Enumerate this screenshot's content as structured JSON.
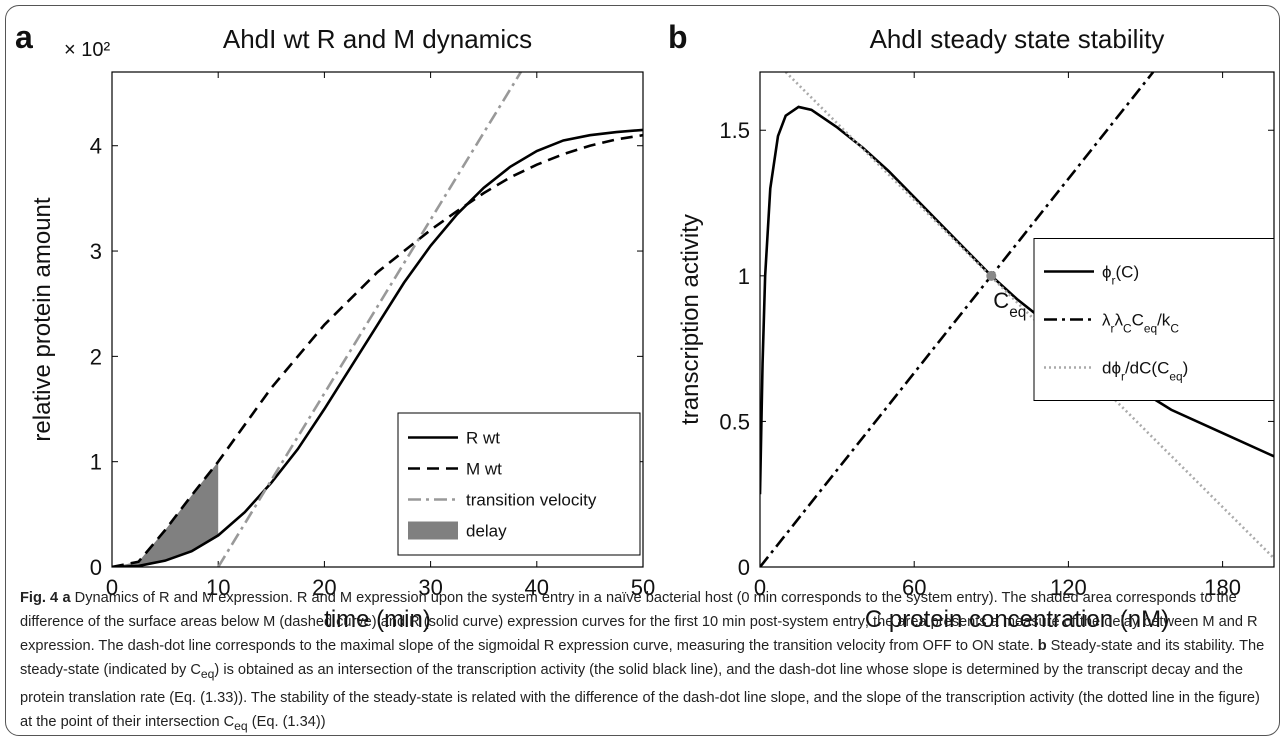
{
  "chart_data": [
    {
      "type": "line",
      "panel_label": "a",
      "title": "AhdI wt R and M dynamics",
      "x_label": "time (min)",
      "y_label": "relative protein amount",
      "y_multiplier": "× 10²",
      "xlim": [
        0,
        50
      ],
      "xticks": [
        0,
        10,
        20,
        30,
        40,
        50
      ],
      "ylim": [
        0,
        4.7
      ],
      "yticks": [
        0,
        1,
        2,
        3,
        4
      ],
      "legend": "lower right",
      "series": [
        {
          "name": "R wt",
          "color": "#000000",
          "dash": "solid",
          "x": [
            0,
            2.5,
            5,
            7.5,
            10,
            12.5,
            15,
            17.5,
            20,
            22.5,
            25,
            27.5,
            30,
            32.5,
            35,
            37.5,
            40,
            42.5,
            45,
            47.5,
            50
          ],
          "values": [
            0,
            0.01,
            0.06,
            0.15,
            0.3,
            0.52,
            0.8,
            1.12,
            1.5,
            1.9,
            2.3,
            2.7,
            3.05,
            3.35,
            3.6,
            3.8,
            3.95,
            4.05,
            4.1,
            4.13,
            4.15
          ]
        },
        {
          "name": "M wt",
          "color": "#000000",
          "dash": "dashed",
          "x": [
            0,
            2.5,
            5,
            7.5,
            10,
            12.5,
            15,
            17.5,
            20,
            22.5,
            25,
            27.5,
            30,
            32.5,
            35,
            37.5,
            40,
            42.5,
            45,
            47.5,
            50
          ],
          "values": [
            0,
            0.05,
            0.35,
            0.68,
            1.0,
            1.35,
            1.7,
            2.0,
            2.3,
            2.55,
            2.8,
            3.0,
            3.2,
            3.38,
            3.55,
            3.7,
            3.82,
            3.92,
            4.0,
            4.06,
            4.1
          ]
        },
        {
          "name": "transition velocity",
          "color": "#999999",
          "dash": "dashdot",
          "x": [
            10,
            38.5
          ],
          "values": [
            0,
            4.7
          ]
        }
      ],
      "delay": {
        "name": "delay",
        "color": "#808080",
        "x_range": [
          0,
          10
        ]
      }
    },
    {
      "type": "line",
      "panel_label": "b",
      "title": "AhdI steady state stability",
      "x_label": "C protein concentration (nM)",
      "y_label": "transcription activity",
      "xlim": [
        0,
        200
      ],
      "xticks": [
        0,
        60,
        120,
        180
      ],
      "ylim": [
        0,
        1.7
      ],
      "yticks": [
        0,
        0.5,
        1,
        1.5
      ],
      "legend": "center right",
      "series": [
        {
          "name": [
            "ϕ",
            {
              "sub": "r"
            },
            "(C)"
          ],
          "color": "#000000",
          "dash": "solid",
          "x": [
            0,
            1,
            2,
            4,
            7,
            10,
            15,
            20,
            30,
            40,
            50,
            60,
            70,
            80,
            90,
            100,
            120,
            140,
            160,
            180,
            200
          ],
          "values": [
            0.25,
            0.7,
            1.0,
            1.3,
            1.48,
            1.55,
            1.58,
            1.57,
            1.51,
            1.44,
            1.36,
            1.27,
            1.18,
            1.09,
            1.0,
            0.92,
            0.78,
            0.65,
            0.54,
            0.46,
            0.38
          ]
        },
        {
          "name": [
            "λ",
            {
              "sub": "r"
            },
            "λ",
            {
              "sub": "C"
            },
            "C",
            {
              "sub": "eq"
            },
            "/k",
            {
              "sub": "C"
            }
          ],
          "color": "#000000",
          "dash": "dashdot",
          "x": [
            0,
            153
          ],
          "values": [
            0,
            1.7
          ]
        },
        {
          "name": [
            "dϕ",
            {
              "sub": "r"
            },
            "/dC(C",
            {
              "sub": "eq"
            },
            ")"
          ],
          "color": "#aaaaaa",
          "dash": "dotted",
          "x": [
            10,
            200
          ],
          "values": [
            1.7,
            0.03
          ]
        }
      ],
      "marker": {
        "x": 90,
        "y": 1.0,
        "color": "#888888"
      },
      "annotation": [
        "C",
        {
          "sub": "eq"
        }
      ]
    }
  ],
  "caption": [
    {
      "b": "Fig. 4"
    },
    {
      "b": "a"
    },
    " Dynamics of R and M expression. R and M expression upon the system entry in a naïve bacterial host (0 min corresponds to the system entry). The shaded area corresponds to the difference of the surface areas below M (dashed curve) and R (solid curve) expression curves for the first 10 min post-system entry; the area presents a measure of the delay between M and R expression. The dash-dot line corresponds to the maximal slope of the sigmoidal R expression curve, measuring the transition velocity from OFF to ON state. ",
    {
      "b": "b"
    },
    " Steady-state and its stability. The steady-state (indicated by C",
    {
      "sub": "eq"
    },
    ") is obtained as an intersection of the transcription activity (the solid black line), and the dash-dot line whose slope is determined by the transcript decay and the protein translation rate (Eq. (1.33)). The stability of the steady-state is related with the difference of the dash-dot line slope, and the slope of the transcription activity (the dotted line in the figure) at the point of their intersection C",
    {
      "sub": "eq"
    },
    " (Eq. (1.34))"
  ]
}
